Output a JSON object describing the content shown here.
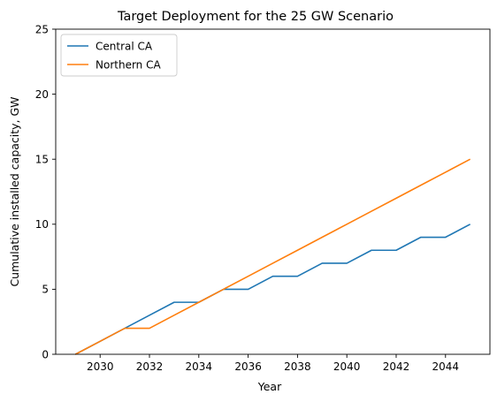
{
  "chart_data": {
    "type": "line",
    "title": "Target Deployment for the 25 GW Scenario",
    "xlabel": "Year",
    "ylabel": "Cumulative installed capacity, GW",
    "xlim": [
      2028.2,
      2045.8
    ],
    "ylim": [
      0,
      25
    ],
    "xticks": [
      2030,
      2032,
      2034,
      2036,
      2038,
      2040,
      2042,
      2044
    ],
    "yticks": [
      0,
      5,
      10,
      15,
      20,
      25
    ],
    "grid": false,
    "legend_position": "top-left",
    "series": [
      {
        "name": "Central CA",
        "color": "#1f77b4",
        "x": [
          2029,
          2030,
          2031,
          2032,
          2033,
          2034,
          2035,
          2036,
          2037,
          2038,
          2039,
          2040,
          2041,
          2042,
          2043,
          2044,
          2045
        ],
        "values": [
          0,
          1,
          2,
          3,
          4,
          4,
          5,
          5,
          6,
          6,
          7,
          7,
          8,
          8,
          9,
          9,
          10
        ]
      },
      {
        "name": "Northern CA",
        "color": "#ff7f0e",
        "x": [
          2029,
          2030,
          2031,
          2032,
          2033,
          2034,
          2035,
          2036,
          2037,
          2038,
          2039,
          2040,
          2041,
          2042,
          2043,
          2044,
          2045
        ],
        "values": [
          0,
          1,
          2,
          2,
          3,
          4,
          5,
          6,
          7,
          8,
          9,
          10,
          11,
          12,
          13,
          14,
          15
        ]
      }
    ]
  }
}
